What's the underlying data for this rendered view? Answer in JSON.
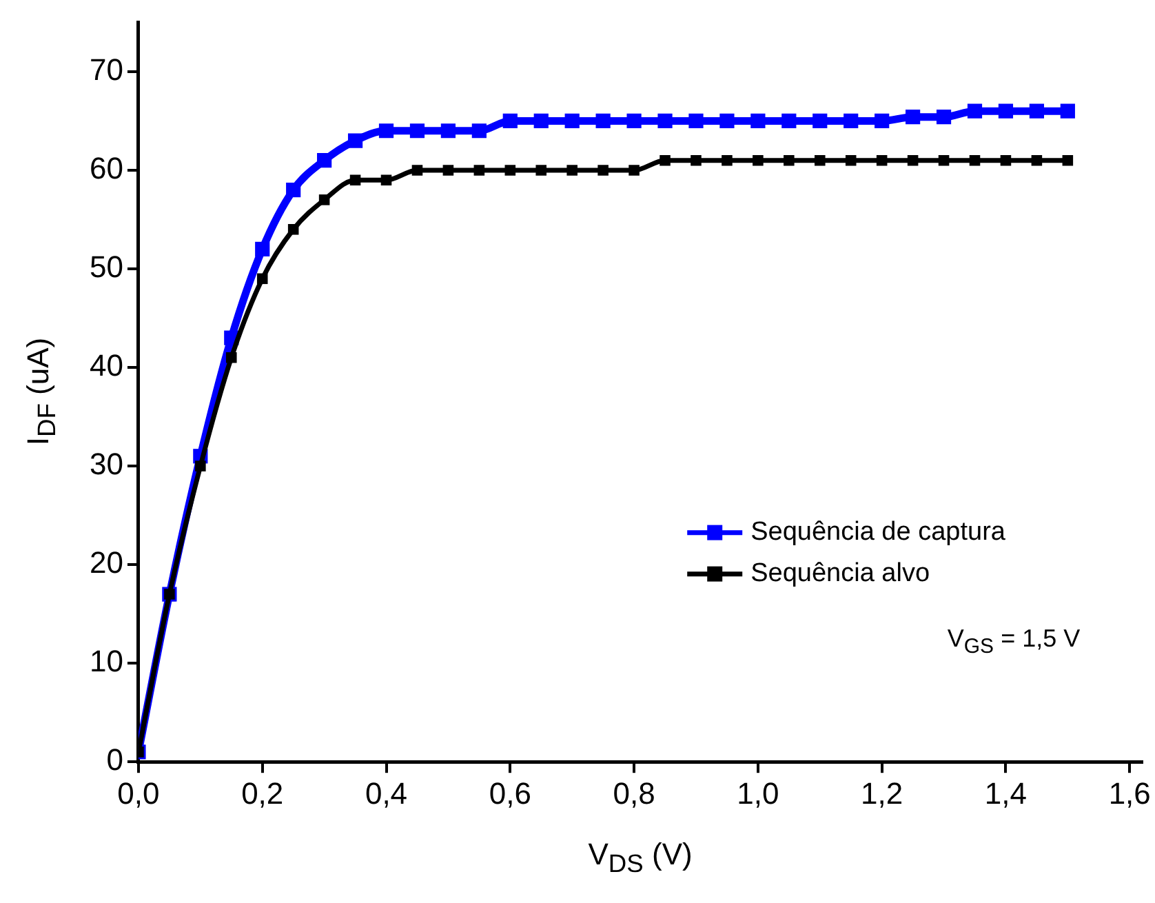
{
  "chart_data": {
    "type": "line",
    "xlabel": "V$_{DS}$ (V)",
    "ylabel": "I$_{DF}$ (uA)",
    "x": [
      0,
      0.05,
      0.1,
      0.15,
      0.2,
      0.25,
      0.3,
      0.35,
      0.4,
      0.45,
      0.5,
      0.55,
      0.6,
      0.65,
      0.7,
      0.75,
      0.8,
      0.85,
      0.9,
      0.95,
      1.0,
      1.05,
      1.1,
      1.15,
      1.2,
      1.25,
      1.3,
      1.35,
      1.4,
      1.45,
      1.5
    ],
    "series": [
      {
        "name": "Sequência de captura",
        "color": "#0000ff",
        "values": [
          1,
          17,
          31,
          43,
          52,
          58,
          61,
          63,
          64,
          64,
          64,
          64,
          65,
          65,
          65,
          65,
          65,
          65,
          65,
          65,
          65,
          65,
          65,
          65,
          65,
          65.4,
          65.4,
          66,
          66,
          66,
          66
        ]
      },
      {
        "name": "Sequência alvo",
        "color": "#000000",
        "values": [
          1,
          17,
          30,
          41,
          49,
          54,
          57,
          59,
          59,
          60,
          60,
          60,
          60,
          60,
          60,
          60,
          60,
          61,
          61,
          61,
          61,
          61,
          61,
          61,
          61,
          61,
          61,
          61,
          61,
          61,
          61
        ]
      }
    ],
    "xlim": [
      0,
      1.62
    ],
    "ylim": [
      0,
      75
    ],
    "xticks": [
      {
        "value": 0,
        "label": "0,0"
      },
      {
        "value": 0.2,
        "label": "0,2"
      },
      {
        "value": 0.4,
        "label": "0,4"
      },
      {
        "value": 0.6,
        "label": "0,6"
      },
      {
        "value": 0.8,
        "label": "0,8"
      },
      {
        "value": 1.0,
        "label": "1,0"
      },
      {
        "value": 1.2,
        "label": "1,2"
      },
      {
        "value": 1.4,
        "label": "1,4"
      },
      {
        "value": 1.6,
        "label": "1,6"
      }
    ],
    "yticks": [
      0,
      10,
      20,
      30,
      40,
      50,
      60,
      70
    ],
    "annotations": [
      "V$_{GS}$ = 1,5 V"
    ],
    "legend": "right",
    "grid": false,
    "marker": "square",
    "line_style": "solid"
  }
}
